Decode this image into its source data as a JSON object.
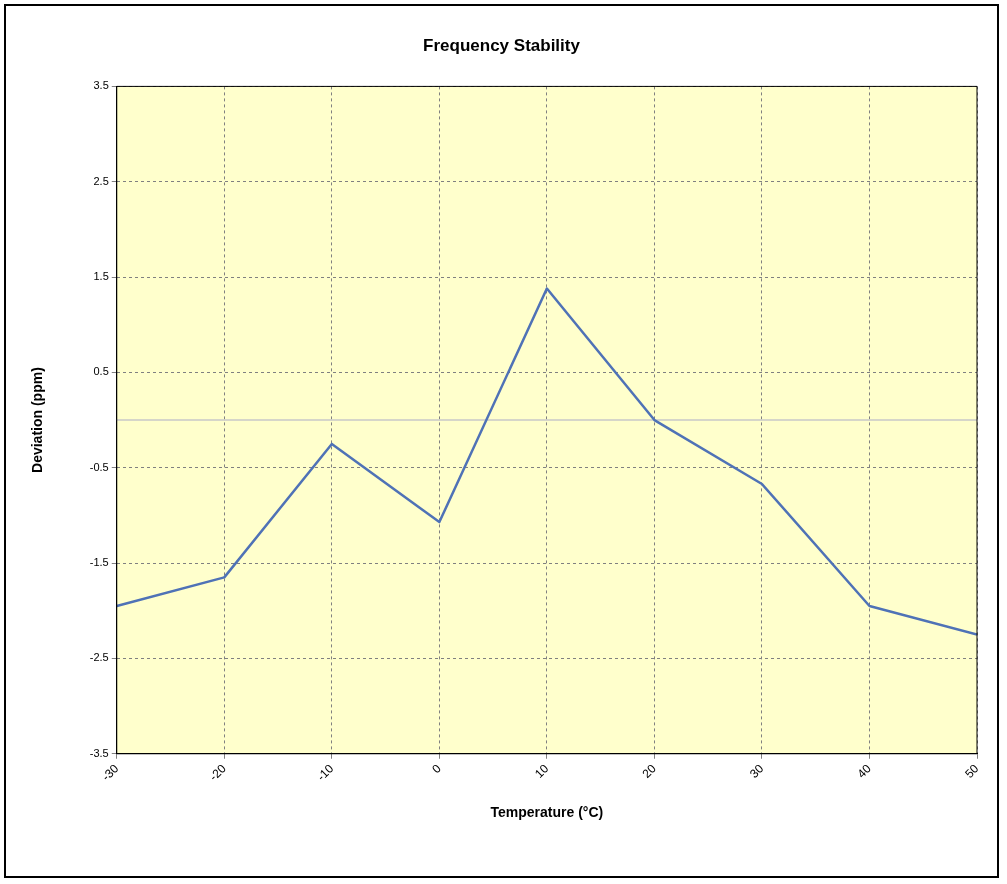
{
  "chart_data": {
    "type": "line",
    "title": "Frequency Stability",
    "xlabel": "Temperature (°C)",
    "ylabel": "Deviation (ppm)",
    "x": [
      -30,
      -20,
      -10,
      0,
      10,
      20,
      30,
      40,
      50
    ],
    "series": [
      {
        "color": "#4f72b6",
        "values": [
          -1.95,
          -1.65,
          -0.25,
          -1.07,
          1.38,
          0.0,
          -0.67,
          -1.95,
          -2.25
        ]
      }
    ],
    "xlim": [
      -30,
      50
    ],
    "xticks": [
      -30,
      -20,
      -10,
      0,
      10,
      20,
      30,
      40,
      50
    ],
    "ylim": [
      -3.5,
      3.5
    ],
    "yticks": [
      -3.5,
      -2.5,
      -1.5,
      -0.5,
      0.5,
      1.5,
      2.5,
      3.5
    ],
    "ref_lines": [
      {
        "axis": "y",
        "value": 0,
        "color": "#c8c8c8"
      }
    ],
    "grid": true,
    "legend": false,
    "marker": "none",
    "line_style": "solid"
  }
}
